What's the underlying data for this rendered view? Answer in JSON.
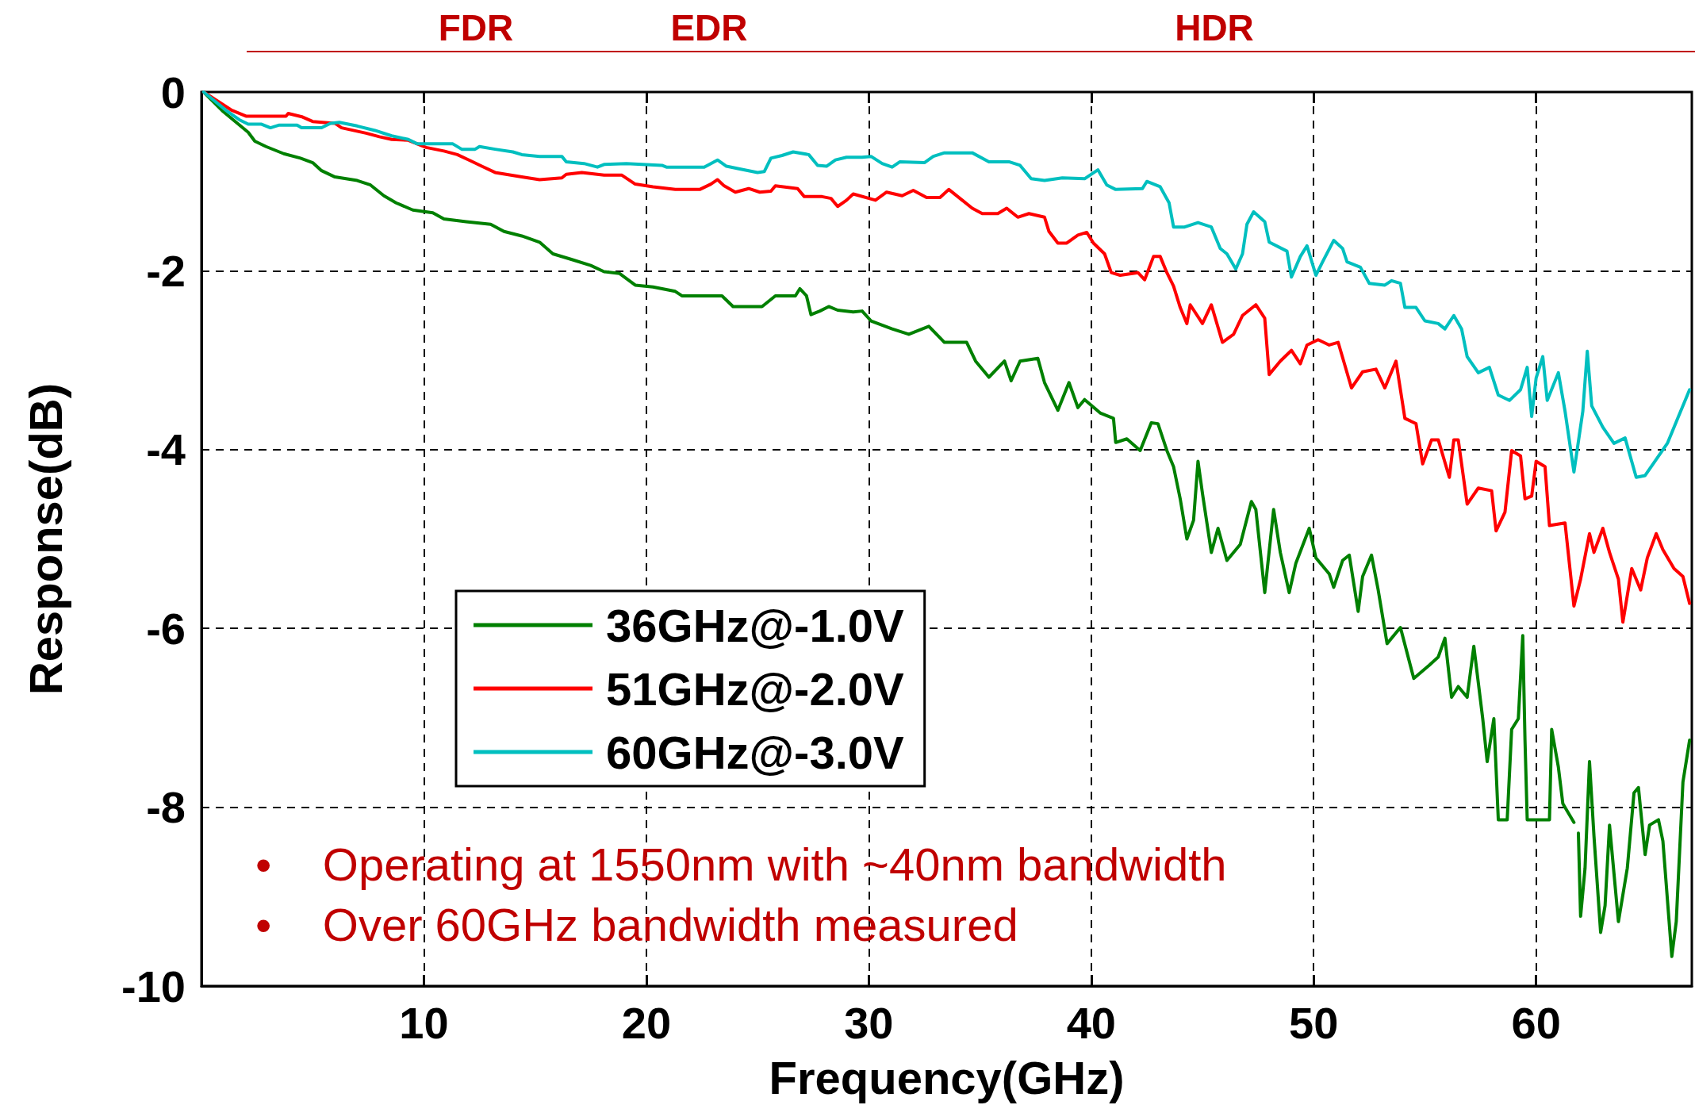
{
  "chart_data": {
    "type": "line",
    "xlabel": "Frequency(GHz)",
    "ylabel": "Response(dB)",
    "annotations": [
      "FDR",
      "EDR",
      "HDR",
      "•    Operating at 1550nm with ~40nm bandwidth",
      "•    Over 60GHz bandwidth measured"
    ],
    "xlim": [
      0,
      67
    ],
    "ylim": [
      -10,
      0
    ],
    "xticks": [
      10,
      20,
      30,
      40,
      50,
      60
    ],
    "yticks": [
      -10,
      -8,
      -6,
      -4,
      -2,
      0
    ],
    "grid": true,
    "legend": "bottom left",
    "line_style": "solid",
    "marker": "none",
    "series": [
      {
        "name": "36GHz@-1.0V",
        "color": "#008000",
        "x": [
          0.1,
          0.94,
          1.52,
          2.1,
          2.4,
          2.9,
          3.7,
          4.45,
          5.0,
          5.4,
          6.0,
          7.0,
          7.6,
          8.2,
          8.75,
          9.5,
          10.4,
          10.9,
          11.9,
          13.0,
          13.6,
          14.4,
          15.2,
          15.8,
          16.6,
          17.5,
          18.1,
          18.8,
          19.5,
          20.3,
          21.3,
          21.6,
          23.4,
          23.9,
          25.2,
          25.8,
          26.7,
          26.9,
          27.2,
          27.4,
          27.8,
          28.2,
          28.6,
          29.3,
          29.7,
          30.1,
          31.05,
          31.8,
          32.7,
          33.4,
          34.4,
          34.8,
          35.4,
          36.1,
          36.4,
          36.8,
          37.6,
          37.9,
          38.5,
          39.0,
          39.4,
          39.7,
          40.4,
          41.0,
          41.1,
          41.6,
          42.2,
          42.7,
          43.0,
          43.4,
          43.7,
          44.0,
          44.3,
          44.6,
          44.8,
          45.0,
          45.4,
          45.7,
          46.1,
          46.7,
          47.2,
          47.4,
          47.8,
          48.2,
          48.5,
          48.9,
          49.2,
          49.8,
          50.1,
          50.7,
          50.9,
          51.3,
          51.6,
          52.0,
          52.2,
          52.6,
          52.9,
          53.3,
          53.9,
          54.5,
          55.2,
          55.6,
          55.9,
          56.2,
          56.5,
          56.9,
          57.2,
          57.6,
          57.8,
          58.1,
          58.3,
          58.7,
          58.9,
          59.2,
          59.4,
          59.5,
          59.6,
          60.6,
          60.7,
          61.0,
          61.2,
          61.7,
          61.8,
          61.9,
          62.0,
          62.2,
          62.4,
          62.6,
          62.9,
          63.1,
          63.3,
          63.7,
          64.1,
          64.4,
          64.6,
          64.9,
          65.1,
          65.5,
          65.7,
          66.1,
          66.3,
          66.6,
          66.9
        ],
        "values": [
          0,
          -0.21,
          -0.33,
          -0.45,
          -0.55,
          -0.61,
          -0.69,
          -0.74,
          -0.79,
          -0.88,
          -0.95,
          -0.99,
          -1.04,
          -1.16,
          -1.24,
          -1.32,
          -1.35,
          -1.42,
          -1.45,
          -1.48,
          -1.56,
          -1.61,
          -1.68,
          -1.81,
          -1.87,
          -1.94,
          -2.01,
          -2.03,
          -2.16,
          -2.18,
          -2.23,
          -2.28,
          -2.28,
          -2.4,
          -2.4,
          -2.28,
          -2.28,
          -2.2,
          -2.28,
          -2.49,
          -2.45,
          -2.4,
          -2.44,
          -2.46,
          -2.45,
          -2.56,
          -2.65,
          -2.71,
          -2.62,
          -2.8,
          -2.8,
          -3.01,
          -3.19,
          -3.01,
          -3.23,
          -3.01,
          -2.98,
          -3.25,
          -3.56,
          -3.25,
          -3.53,
          -3.44,
          -3.59,
          -3.65,
          -3.92,
          -3.88,
          -4.01,
          -3.7,
          -3.71,
          -4.01,
          -4.19,
          -4.55,
          -5.0,
          -4.79,
          -4.13,
          -4.49,
          -5.15,
          -4.88,
          -5.24,
          -5.06,
          -4.58,
          -4.67,
          -5.6,
          -4.67,
          -5.15,
          -5.6,
          -5.27,
          -4.88,
          -5.21,
          -5.39,
          -5.54,
          -5.24,
          -5.18,
          -5.81,
          -5.42,
          -5.18,
          -5.57,
          -6.17,
          -5.99,
          -6.56,
          -6.41,
          -6.32,
          -6.11,
          -6.77,
          -6.65,
          -6.77,
          -6.2,
          -7.01,
          -7.49,
          -7.01,
          -8.14,
          -8.14,
          -7.13,
          -7.01,
          -6.08,
          -7.25,
          -8.14,
          -8.14,
          -7.13,
          -7.55,
          -7.96,
          -8.17,
          null,
          -8.29,
          -9.22,
          -8.68,
          -7.49,
          -8.32,
          -9.4,
          -9.1,
          -8.2,
          -9.28,
          -8.68,
          -7.84,
          -7.78,
          -8.53,
          -8.2,
          -8.14,
          -8.38,
          -9.67,
          -9.28,
          -7.72,
          -7.25
        ]
      },
      {
        "name": "51GHz@-2.0V",
        "color": "#ff0000",
        "x": [
          0.1,
          1.33,
          2.0,
          3.8,
          3.9,
          4.55,
          5.0,
          6.0,
          6.3,
          7.4,
          8.0,
          8.55,
          9.3,
          10.1,
          10.9,
          11.5,
          12.1,
          12.6,
          13.2,
          14.4,
          15.2,
          16.2,
          16.4,
          17.1,
          18.1,
          18.9,
          19.5,
          20.3,
          21.3,
          22.4,
          22.9,
          23.2,
          23.5,
          24.0,
          24.6,
          25.1,
          25.6,
          25.8,
          26.8,
          27.1,
          27.9,
          28.3,
          28.6,
          29.0,
          29.3,
          30.3,
          30.8,
          31.5,
          32.0,
          32.6,
          33.2,
          33.6,
          34.2,
          34.65,
          35.1,
          35.8,
          36.2,
          36.7,
          37.2,
          37.9,
          38.1,
          38.5,
          38.9,
          39.4,
          39.8,
          40.1,
          40.6,
          40.9,
          41.3,
          42.1,
          42.4,
          42.8,
          43.1,
          43.4,
          43.7,
          44.0,
          44.3,
          44.45,
          45.0,
          45.4,
          45.9,
          46.4,
          46.8,
          47.4,
          47.8,
          48.0,
          48.5,
          49.0,
          49.4,
          49.7,
          50.2,
          50.7,
          51.1,
          51.7,
          52.2,
          52.8,
          53.2,
          53.7,
          54.1,
          54.6,
          54.9,
          55.3,
          55.6,
          56.1,
          56.3,
          56.5,
          56.9,
          57.4,
          58.0,
          58.2,
          58.6,
          58.9,
          59.3,
          59.5,
          59.8,
          60.0,
          60.4,
          60.6,
          61.3,
          61.7,
          62.0,
          62.4,
          62.6,
          63.0,
          63.3,
          63.7,
          63.9,
          64.3,
          64.7,
          65.0,
          65.4,
          65.7,
          66.2,
          66.6,
          66.9
        ],
        "values": [
          0,
          -0.2,
          -0.27,
          -0.27,
          -0.24,
          -0.28,
          -0.33,
          -0.35,
          -0.4,
          -0.46,
          -0.5,
          -0.53,
          -0.54,
          -0.62,
          -0.66,
          -0.7,
          -0.77,
          -0.83,
          -0.9,
          -0.95,
          -0.98,
          -0.96,
          -0.92,
          -0.9,
          -0.93,
          -0.93,
          -1.03,
          -1.06,
          -1.09,
          -1.09,
          -1.03,
          -0.98,
          -1.05,
          -1.12,
          -1.08,
          -1.12,
          -1.11,
          -1.05,
          -1.08,
          -1.17,
          -1.17,
          -1.19,
          -1.28,
          -1.21,
          -1.14,
          -1.21,
          -1.12,
          -1.16,
          -1.1,
          -1.18,
          -1.18,
          -1.09,
          -1.21,
          -1.3,
          -1.36,
          -1.36,
          -1.3,
          -1.4,
          -1.36,
          -1.4,
          -1.56,
          -1.69,
          -1.69,
          -1.6,
          -1.57,
          -1.69,
          -1.81,
          -2.02,
          -2.05,
          -2.02,
          -2.1,
          -1.84,
          -1.84,
          -2.02,
          -2.17,
          -2.41,
          -2.59,
          -2.38,
          -2.59,
          -2.38,
          -2.8,
          -2.71,
          -2.5,
          -2.38,
          -2.53,
          -3.16,
          -3.01,
          -2.89,
          -3.04,
          -2.83,
          -2.77,
          -2.83,
          -2.8,
          -3.31,
          -3.13,
          -3.1,
          -3.31,
          -3.01,
          -3.65,
          -3.71,
          -4.16,
          -3.89,
          -3.89,
          -4.31,
          -3.89,
          -3.89,
          -4.61,
          -4.43,
          -4.46,
          -4.91,
          -4.7,
          -4.01,
          -4.07,
          -4.55,
          -4.52,
          -4.13,
          -4.19,
          -4.85,
          -4.82,
          -5.75,
          -5.45,
          -4.94,
          -5.15,
          -4.88,
          -5.15,
          -5.45,
          -5.93,
          -5.33,
          -5.57,
          -5.21,
          -4.94,
          -5.12,
          -5.33,
          -5.42,
          -5.72
        ]
      },
      {
        "name": "60GHz@-3.0V",
        "color": "#00bfbf",
        "x": [
          0.1,
          1.13,
          1.7,
          2.1,
          2.7,
          3.1,
          3.5,
          4.3,
          4.5,
          5.4,
          5.8,
          6.2,
          7.0,
          7.8,
          8.55,
          9.3,
          9.7,
          11.3,
          11.7,
          12.3,
          12.5,
          13.2,
          14.0,
          14.4,
          15.2,
          16.2,
          16.4,
          17.2,
          17.8,
          18.1,
          19.1,
          20.7,
          20.9,
          22.6,
          23.2,
          23.6,
          24.2,
          25.0,
          25.3,
          25.6,
          26.1,
          26.6,
          27.3,
          27.7,
          28.1,
          28.5,
          29.0,
          29.7,
          30.1,
          30.6,
          31.05,
          31.4,
          32.5,
          32.9,
          33.4,
          34.65,
          35.4,
          36.3,
          36.8,
          37.3,
          37.9,
          38.7,
          39.7,
          40.3,
          40.7,
          41.1,
          42.3,
          42.5,
          43.1,
          43.5,
          43.7,
          44.2,
          44.8,
          45.4,
          45.8,
          46.1,
          46.5,
          46.8,
          47.0,
          47.3,
          47.8,
          48.0,
          48.8,
          49.0,
          49.4,
          49.7,
          50.1,
          50.4,
          50.9,
          51.3,
          51.5,
          52.1,
          52.5,
          53.2,
          53.5,
          53.9,
          54.1,
          54.6,
          55.0,
          55.6,
          55.9,
          56.3,
          56.65,
          56.9,
          57.4,
          57.9,
          58.3,
          58.8,
          59.3,
          59.6,
          59.8,
          60.0,
          60.3,
          60.5,
          61.0,
          61.3,
          61.7,
          62.1,
          62.3,
          62.5,
          63.0,
          63.5,
          64.0,
          64.5,
          64.9,
          65.4,
          65.9,
          66.4,
          66.9
        ],
        "values": [
          0,
          -0.21,
          -0.31,
          -0.36,
          -0.36,
          -0.4,
          -0.37,
          -0.37,
          -0.4,
          -0.4,
          -0.35,
          -0.34,
          -0.38,
          -0.43,
          -0.49,
          -0.53,
          -0.58,
          -0.58,
          -0.64,
          -0.64,
          -0.61,
          -0.64,
          -0.67,
          -0.7,
          -0.72,
          -0.72,
          -0.78,
          -0.8,
          -0.84,
          -0.81,
          -0.8,
          -0.82,
          -0.84,
          -0.84,
          -0.76,
          -0.83,
          -0.86,
          -0.9,
          -0.89,
          -0.74,
          -0.71,
          -0.67,
          -0.7,
          -0.82,
          -0.83,
          -0.76,
          -0.73,
          -0.73,
          -0.72,
          -0.8,
          -0.84,
          -0.78,
          -0.79,
          -0.72,
          -0.68,
          -0.68,
          -0.78,
          -0.78,
          -0.82,
          -0.97,
          -0.99,
          -0.96,
          -0.97,
          -0.87,
          -1.04,
          -1.09,
          -1.08,
          -1.0,
          -1.06,
          -1.24,
          -1.51,
          -1.51,
          -1.46,
          -1.51,
          -1.75,
          -1.81,
          -1.98,
          -1.81,
          -1.48,
          -1.34,
          -1.45,
          -1.68,
          -1.78,
          -2.07,
          -1.84,
          -1.72,
          -2.05,
          -1.9,
          -1.66,
          -1.75,
          -1.9,
          -1.96,
          -2.14,
          -2.16,
          -2.11,
          -2.14,
          -2.41,
          -2.41,
          -2.56,
          -2.59,
          -2.65,
          -2.5,
          -2.65,
          -2.96,
          -3.14,
          -3.08,
          -3.39,
          -3.45,
          -3.33,
          -3.08,
          -3.63,
          -3.2,
          -2.96,
          -3.45,
          -3.14,
          -3.57,
          -4.25,
          -3.57,
          -2.9,
          -3.51,
          -3.75,
          -3.93,
          -3.87,
          -4.31,
          -4.29,
          -4.11,
          -3.93,
          -3.63,
          -3.33
        ]
      }
    ]
  }
}
